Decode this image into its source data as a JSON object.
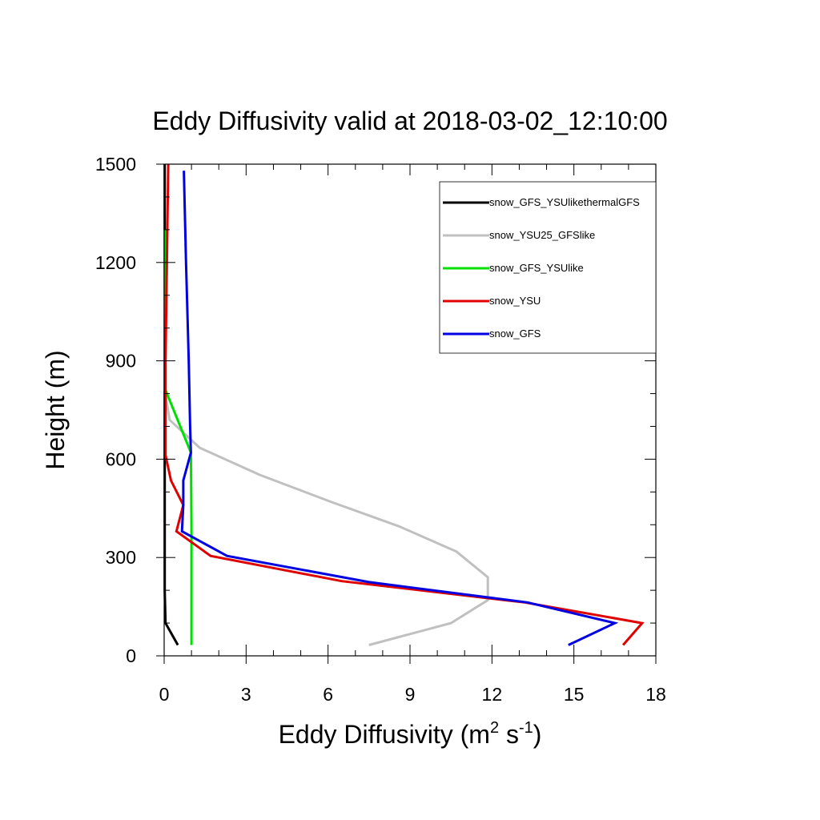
{
  "chart_data": {
    "type": "line",
    "title": "Eddy Diffusivity valid at 2018-03-02_12:10:00",
    "xlabel": {
      "base": "Eddy Diffusivity (m",
      "exp1": "2",
      "mid": " s",
      "exp2": "-1",
      "end": ")"
    },
    "ylabel": "Height (m)",
    "xlim": [
      0,
      18
    ],
    "ylim": [
      0,
      1500
    ],
    "xticks": [
      0,
      3,
      6,
      9,
      12,
      15,
      18
    ],
    "yticks": [
      0,
      300,
      600,
      900,
      1200,
      1500
    ],
    "xtick_labels": [
      "0",
      "3",
      "6",
      "9",
      "12",
      "15",
      "18"
    ],
    "ytick_labels": [
      "0",
      "300",
      "600",
      "900",
      "1200",
      "1500"
    ],
    "grid": false,
    "legend_position": "top-right",
    "series": [
      {
        "name": "snow_GFS_YSUlikethermalGFS",
        "color": "#000000",
        "points": [
          [
            0.5,
            33
          ],
          [
            0.05,
            100
          ],
          [
            0.02,
            200
          ],
          [
            0.02,
            400
          ],
          [
            0.02,
            700
          ],
          [
            0.02,
            1000
          ],
          [
            0.02,
            1300
          ],
          [
            0.02,
            1500
          ]
        ]
      },
      {
        "name": "snow_YSU25_GFSlike",
        "color": "#c0c0c0",
        "points": [
          [
            7.5,
            33
          ],
          [
            10.5,
            100
          ],
          [
            11.85,
            170
          ],
          [
            11.85,
            240
          ],
          [
            10.7,
            318
          ],
          [
            8.6,
            395
          ],
          [
            6.1,
            470
          ],
          [
            3.5,
            552
          ],
          [
            1.3,
            635
          ],
          [
            0.2,
            720
          ],
          [
            0.02,
            810
          ],
          [
            0.02,
            1000
          ],
          [
            0.02,
            1300
          ]
        ]
      },
      {
        "name": "snow_GFS_YSUlike",
        "color": "#00e000",
        "points": [
          [
            1.0,
            33
          ],
          [
            1.0,
            200
          ],
          [
            1.0,
            400
          ],
          [
            0.98,
            620
          ],
          [
            0.03,
            815
          ],
          [
            0.03,
            1000
          ],
          [
            0.03,
            1300
          ]
        ]
      },
      {
        "name": "snow_YSU",
        "color": "#e00000",
        "points": [
          [
            16.8,
            33
          ],
          [
            17.5,
            100
          ],
          [
            13.2,
            163
          ],
          [
            6.5,
            228
          ],
          [
            1.7,
            305
          ],
          [
            0.45,
            380
          ],
          [
            0.7,
            460
          ],
          [
            0.25,
            535
          ],
          [
            0.05,
            612
          ],
          [
            0.05,
            700
          ],
          [
            0.05,
            900
          ],
          [
            0.1,
            1200
          ],
          [
            0.15,
            1500
          ]
        ]
      },
      {
        "name": "snow_GFS",
        "color": "#0000e0",
        "points": [
          [
            14.8,
            33
          ],
          [
            16.5,
            100
          ],
          [
            13.3,
            163
          ],
          [
            7.5,
            225
          ],
          [
            2.3,
            305
          ],
          [
            0.65,
            380
          ],
          [
            0.7,
            460
          ],
          [
            0.7,
            535
          ],
          [
            0.98,
            620
          ],
          [
            0.95,
            700
          ],
          [
            0.9,
            900
          ],
          [
            0.8,
            1200
          ],
          [
            0.72,
            1480
          ]
        ]
      }
    ]
  }
}
